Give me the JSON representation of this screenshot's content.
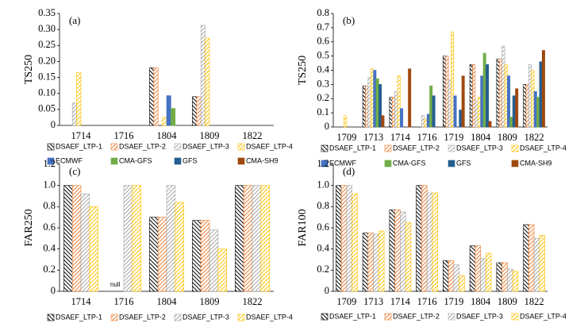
{
  "chart_data": [
    {
      "type": "bar",
      "panel_label": "(a)",
      "y_label": "TS250",
      "categories": [
        "1714",
        "1716",
        "1804",
        "1809",
        "1822"
      ],
      "ylim": [
        0,
        0.35
      ],
      "yticks": [
        0,
        0.05,
        {
          "value": 0.1,
          "label": "0.10"
        },
        0.15,
        {
          "value": 0.2,
          "label": "0.20"
        },
        0.25,
        {
          "value": 0.3,
          "label": "0.30"
        },
        0.35
      ],
      "series": [
        {
          "name": "DSAEF_LTP-1",
          "color": "#000000",
          "pattern": "hatch",
          "values": [
            0,
            0,
            0.18,
            0.09,
            0
          ]
        },
        {
          "name": "DSAEF_LTP-2",
          "color": "#ed7d31",
          "pattern": "hatch",
          "values": [
            0,
            0,
            0.18,
            0.09,
            0
          ]
        },
        {
          "name": "DSAEF_LTP-3",
          "color": "#a5a5a5",
          "pattern": "hatch",
          "values": [
            0.07,
            0,
            0,
            0.313,
            0
          ]
        },
        {
          "name": "DSAEF_LTP-4",
          "color": "#ffc000",
          "pattern": "hatch",
          "values": [
            0.165,
            0,
            0.025,
            0.273,
            0
          ]
        },
        {
          "name": "ECMWF",
          "color": "#4472c4",
          "values": [
            0,
            0,
            0.093,
            0,
            0
          ]
        },
        {
          "name": "CMA-GFS",
          "color": "#70ad47",
          "values": [
            0,
            0,
            0.053,
            0,
            0
          ]
        },
        {
          "name": "GFS",
          "color": "#255e91",
          "values": [
            0,
            0,
            0,
            0,
            0
          ]
        },
        {
          "name": "CMA-SH9",
          "color": "#9e480e",
          "values": [
            0,
            0,
            0,
            0,
            0
          ]
        }
      ]
    },
    {
      "type": "bar",
      "panel_label": "(b)",
      "y_label": "TS250",
      "categories": [
        "1709",
        "1713",
        "1714",
        "1716",
        "1719",
        "1804",
        "1809",
        "1822"
      ],
      "ylim": [
        0,
        0.8
      ],
      "yticks": [
        0,
        0.1,
        0.2,
        0.3,
        0.4,
        0.5,
        0.6,
        0.7,
        0.8
      ],
      "series": [
        {
          "name": "DSAEF_LTP-1",
          "color": "#000000",
          "pattern": "hatch",
          "values": [
            0,
            0.29,
            0.21,
            0,
            0.5,
            0.44,
            0.48,
            0.3
          ]
        },
        {
          "name": "DSAEF_LTP-2",
          "color": "#ed7d31",
          "pattern": "hatch",
          "values": [
            0,
            0.29,
            0.21,
            0,
            0.5,
            0.44,
            0.48,
            0.3
          ]
        },
        {
          "name": "DSAEF_LTP-3",
          "color": "#a5a5a5",
          "pattern": "hatch",
          "values": [
            0,
            0.35,
            0.25,
            0.08,
            0.33,
            0.18,
            0.57,
            0.44
          ]
        },
        {
          "name": "DSAEF_LTP-4",
          "color": "#ffc000",
          "pattern": "hatch",
          "values": [
            0.08,
            0.41,
            0.36,
            0.06,
            0.67,
            0.21,
            0.44,
            0.4
          ]
        },
        {
          "name": "ECMWF",
          "color": "#4472c4",
          "values": [
            0,
            0.4,
            0.13,
            0.09,
            0.22,
            0.36,
            0.36,
            0.25
          ]
        },
        {
          "name": "CMA-GFS",
          "color": "#70ad47",
          "values": [
            0,
            0.34,
            0,
            0.29,
            0,
            0.52,
            0.07,
            0.21
          ]
        },
        {
          "name": "GFS",
          "color": "#255e91",
          "values": [
            0,
            0.3,
            0,
            0.22,
            0.12,
            0.44,
            0.22,
            0.46
          ]
        },
        {
          "name": "CMA-SH9",
          "color": "#9e480e",
          "values": [
            0,
            0.08,
            0.41,
            0,
            0.36,
            0.04,
            0.27,
            0.54
          ]
        }
      ]
    },
    {
      "type": "bar",
      "panel_label": "(c)",
      "y_label": "FAR250",
      "annotation": "null",
      "categories": [
        "1714",
        "1716",
        "1804",
        "1809",
        "1822"
      ],
      "ylim": [
        0,
        1.2
      ],
      "yticks": [
        0,
        0.2,
        0.4,
        0.6,
        0.8,
        {
          "value": 1.0,
          "label": "1.0"
        },
        1.2
      ],
      "series": [
        {
          "name": "DSAEF_LTP-1",
          "color": "#000000",
          "pattern": "hatch",
          "values": [
            1,
            null,
            0.7,
            0.67,
            1
          ]
        },
        {
          "name": "DSAEF_LTP-2",
          "color": "#ed7d31",
          "pattern": "hatch",
          "values": [
            1,
            null,
            0.7,
            0.67,
            1
          ]
        },
        {
          "name": "DSAEF_LTP-3",
          "color": "#a5a5a5",
          "pattern": "hatch",
          "values": [
            0.92,
            1,
            1,
            0.58,
            1
          ]
        },
        {
          "name": "DSAEF_LTP-4",
          "color": "#ffc000",
          "pattern": "hatch",
          "values": [
            0.8,
            1,
            0.84,
            0.4,
            1
          ]
        }
      ]
    },
    {
      "type": "bar",
      "panel_label": "(d)",
      "y_label": "FAR100",
      "categories": [
        "1709",
        "1713",
        "1714",
        "1716",
        "1719",
        "1804",
        "1809",
        "1822"
      ],
      "ylim": [
        0,
        1.2
      ],
      "yticks": [
        0,
        0.2,
        0.4,
        0.6,
        0.8,
        {
          "value": 1.0,
          "label": "1.0"
        },
        1.2
      ],
      "series": [
        {
          "name": "DSAEF_LTP-1",
          "color": "#000000",
          "pattern": "hatch",
          "values": [
            1,
            0.55,
            0.77,
            1,
            0.29,
            0.43,
            0.27,
            0.63
          ]
        },
        {
          "name": "DSAEF_LTP-2",
          "color": "#ed7d31",
          "pattern": "hatch",
          "values": [
            1,
            0.55,
            0.77,
            1,
            0.29,
            0.43,
            0.27,
            0.63
          ]
        },
        {
          "name": "DSAEF_LTP-3",
          "color": "#a5a5a5",
          "pattern": "hatch",
          "values": [
            1,
            0.54,
            0.75,
            0.93,
            0.25,
            0.31,
            0.21,
            0.5
          ]
        },
        {
          "name": "DSAEF_LTP-4",
          "color": "#ffc000",
          "pattern": "hatch",
          "values": [
            0.92,
            0.57,
            0.65,
            0.93,
            0.15,
            0.36,
            0.19,
            0.53
          ]
        }
      ]
    }
  ]
}
